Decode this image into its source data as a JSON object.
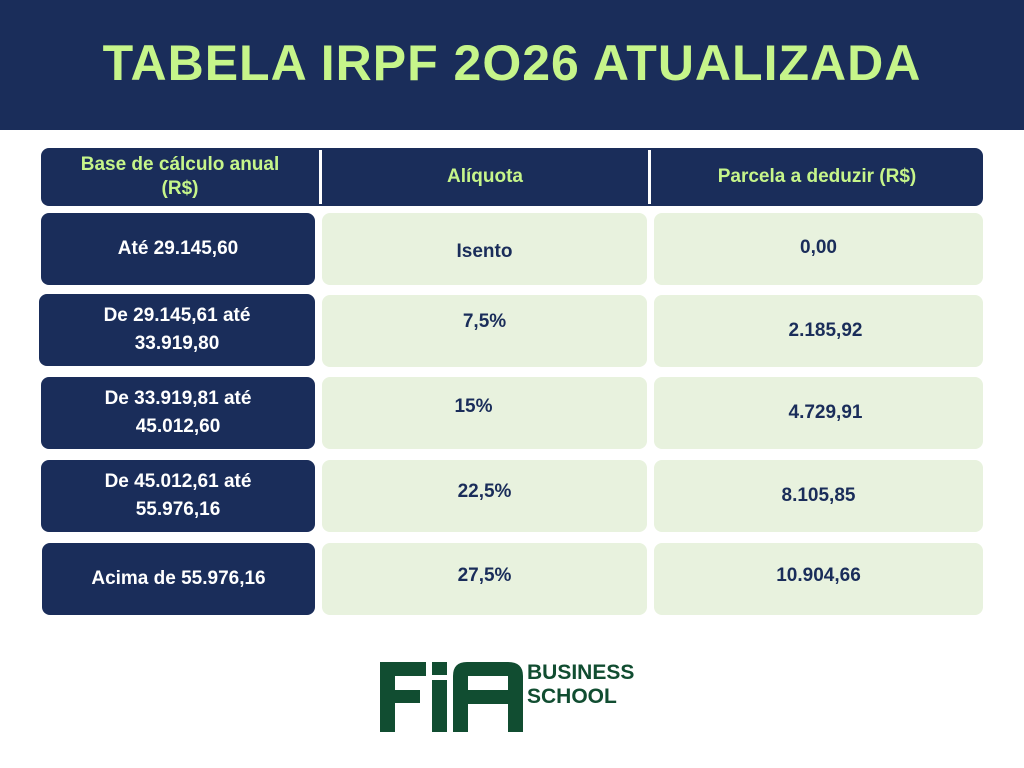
{
  "title": "TABELA IRPF 2O26 ATUALIZADA",
  "table": {
    "headers": [
      "Base de cálculo anual\n(R$)",
      "Alíquota",
      "Parcela a deduzir (R$)"
    ],
    "rows": [
      {
        "base": "Até 29.145,60",
        "aliquota": "Isento",
        "parcela": "0,00"
      },
      {
        "base": "De 29.145,61 até\n33.919,80",
        "aliquota": "7,5%",
        "parcela": "2.185,92"
      },
      {
        "base": "De 33.919,81 até\n45.012,60",
        "aliquota": "15%",
        "parcela": "4.729,91"
      },
      {
        "base": "De 45.012,61 até\n55.976,16",
        "aliquota": "22,5%",
        "parcela": "8.105,85"
      },
      {
        "base": "Acima de 55.976,16",
        "aliquota": "27,5%",
        "parcela": "10.904,66"
      }
    ]
  },
  "logo": {
    "mark": "FIA",
    "line1": "BUSINESS",
    "line2": "SCHOOL"
  },
  "colors": {
    "navy": "#1a2d5a",
    "lime": "#c6f58a",
    "light_green": "#e8f2de",
    "logo_green": "#114d31"
  }
}
